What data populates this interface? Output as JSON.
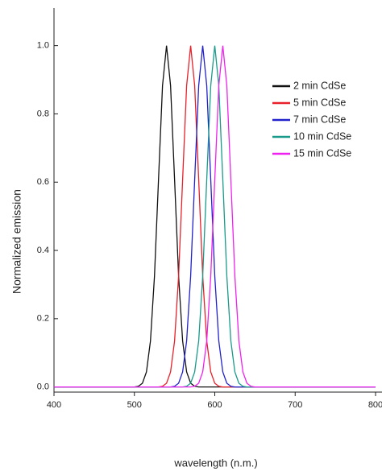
{
  "chart_data": {
    "type": "line",
    "x_label": "wavelength (n.m.)",
    "y_label": "Normalized emission",
    "x": [
      400,
      480,
      485,
      490,
      495,
      500,
      505,
      510,
      515,
      520,
      525,
      530,
      535,
      540,
      545,
      550,
      555,
      560,
      565,
      570,
      575,
      580,
      585,
      590,
      595,
      600,
      605,
      610,
      615,
      620,
      625,
      630,
      635,
      640,
      645,
      650,
      655,
      660,
      700,
      800
    ],
    "xlim": [
      400,
      800
    ],
    "xticks": [
      400,
      500,
      600,
      700,
      800
    ],
    "ylim": [
      -0.015,
      1.11
    ],
    "yticks": [
      {
        "value": 0,
        "label": "0.0"
      },
      0.2,
      0.4,
      0.6,
      0.8,
      {
        "value": 1,
        "label": "1.0"
      }
    ],
    "grid": false,
    "legend": "upper right",
    "series": [
      {
        "name": "2 min CdSe",
        "color": "#111111",
        "values": [
          0,
          0,
          0,
          0,
          0,
          0,
          0.002,
          0.011,
          0.044,
          0.135,
          0.325,
          0.607,
          0.883,
          1,
          0.883,
          0.607,
          0.325,
          0.135,
          0.044,
          0.011,
          0.002,
          0,
          0,
          0,
          0,
          0,
          0,
          0,
          0,
          0,
          0,
          0,
          0,
          0,
          0,
          0,
          0,
          0,
          0,
          0
        ]
      },
      {
        "name": "5 min CdSe",
        "color": "#e8202a",
        "values": [
          0,
          0,
          0,
          0,
          0,
          0,
          0,
          0,
          0,
          0,
          0,
          0,
          0.002,
          0.011,
          0.044,
          0.135,
          0.325,
          0.607,
          0.883,
          1,
          0.883,
          0.607,
          0.325,
          0.135,
          0.044,
          0.011,
          0.002,
          0,
          0,
          0,
          0,
          0,
          0,
          0,
          0,
          0,
          0,
          0,
          0,
          0
        ]
      },
      {
        "name": "7 min CdSe",
        "color": "#2222cc",
        "values": [
          0,
          0,
          0,
          0,
          0,
          0,
          0,
          0,
          0,
          0,
          0,
          0,
          0,
          0,
          0,
          0.002,
          0.011,
          0.044,
          0.135,
          0.325,
          0.607,
          0.883,
          1,
          0.883,
          0.607,
          0.325,
          0.135,
          0.044,
          0.011,
          0.002,
          0,
          0,
          0,
          0,
          0,
          0,
          0,
          0,
          0,
          0
        ]
      },
      {
        "name": "10 min CdSe",
        "color": "#1a9a8a",
        "values": [
          0,
          0,
          0,
          0,
          0,
          0,
          0,
          0,
          0,
          0,
          0,
          0,
          0,
          0,
          0,
          0,
          0,
          0,
          0.002,
          0.011,
          0.044,
          0.135,
          0.325,
          0.607,
          0.883,
          1,
          0.883,
          0.607,
          0.325,
          0.135,
          0.044,
          0.011,
          0.002,
          0,
          0,
          0,
          0,
          0,
          0,
          0
        ]
      },
      {
        "name": "15 min CdSe",
        "color": "#ee22ee",
        "values": [
          0,
          0,
          0,
          0,
          0,
          0,
          0,
          0,
          0,
          0,
          0,
          0,
          0,
          0,
          0,
          0,
          0,
          0,
          0,
          0,
          0.002,
          0.011,
          0.044,
          0.135,
          0.325,
          0.607,
          0.883,
          1,
          0.883,
          0.607,
          0.325,
          0.135,
          0.044,
          0.011,
          0.002,
          0,
          0,
          0,
          0,
          0
        ]
      }
    ]
  }
}
